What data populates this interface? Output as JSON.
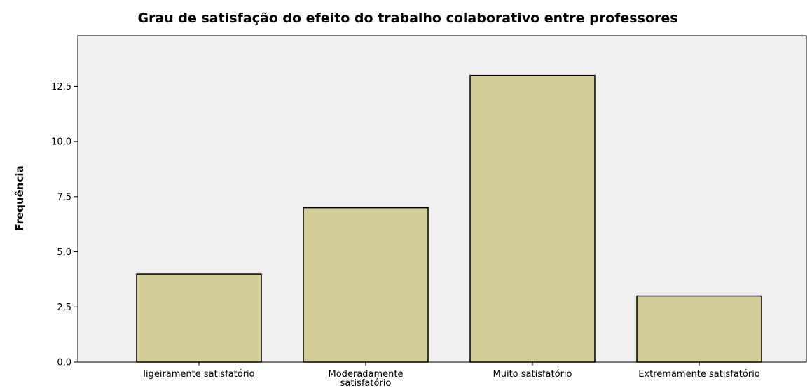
{
  "chart_data": {
    "type": "bar",
    "title": "Grau de satisfação do efeito do trabalho colaborativo entre professores",
    "xlabel": "",
    "ylabel": "Frequência",
    "categories": [
      [
        "ligeiramente satisfatório"
      ],
      [
        "Moderadamente",
        "satisfatório"
      ],
      [
        "Muito satisfatório"
      ],
      [
        "Extremamente satisfatório"
      ]
    ],
    "values": [
      4,
      7,
      13,
      3
    ],
    "ylim": [
      0,
      14.8
    ],
    "yticks": [
      "0,0",
      "2,5",
      "5,0",
      "7,5",
      "10,0",
      "12,5"
    ],
    "ytick_values": [
      0,
      2.5,
      5,
      7.5,
      10,
      12.5
    ],
    "grid": false,
    "legend": "none",
    "colors": {
      "bar_fill": "#d3ce97",
      "bar_stroke": "#000000",
      "plot_background": "#f0f0f0",
      "axis": "#000000"
    }
  }
}
